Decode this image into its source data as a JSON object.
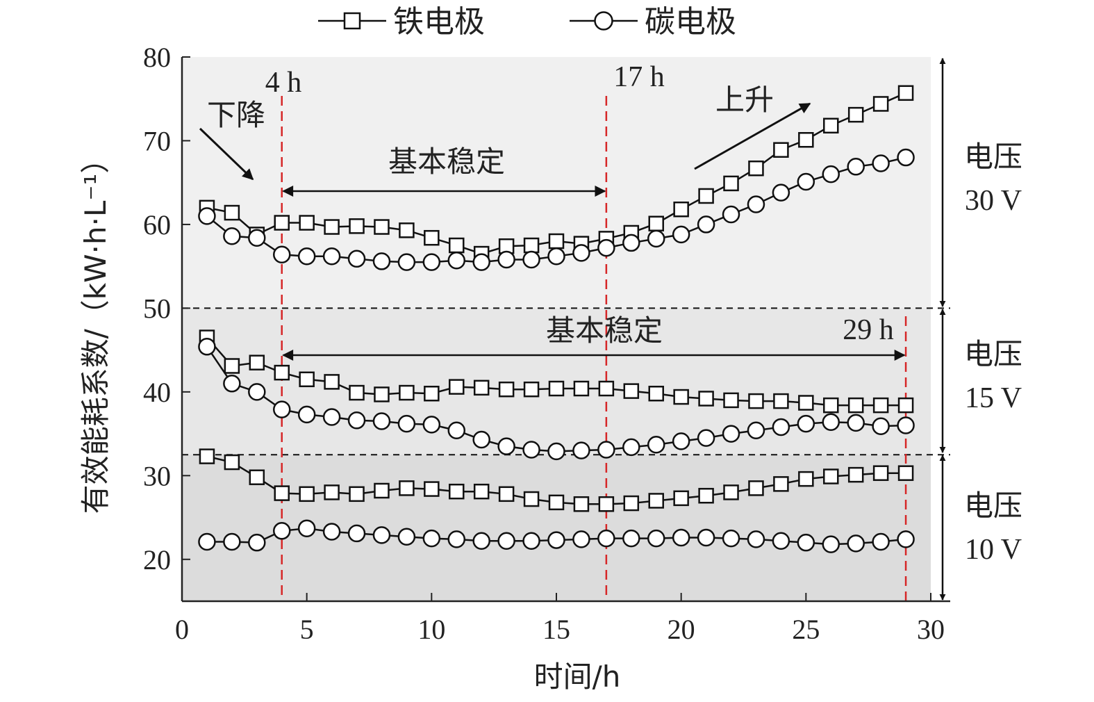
{
  "chart_data": {
    "type": "line",
    "xlabel": "时间/h",
    "ylabel": "有效能耗系数/（kW·h·L⁻¹）",
    "xlim": [
      0,
      30
    ],
    "ylim": [
      15,
      80
    ],
    "xticks": [
      0,
      5,
      10,
      15,
      20,
      25,
      30
    ],
    "yticks": [
      20,
      30,
      40,
      50,
      60,
      70,
      80
    ],
    "legend": {
      "placement": "top",
      "items": [
        {
          "name": "铁电极",
          "marker": "square"
        },
        {
          "name": "碳电极",
          "marker": "circle"
        }
      ]
    },
    "regions": [
      {
        "label_line1": "电压",
        "label_line2": "30 V",
        "y_range": [
          50,
          80
        ],
        "color": "#f0f0f0"
      },
      {
        "label_line1": "电压",
        "label_line2": "15 V",
        "y_range": [
          32.5,
          50
        ],
        "color": "#e7e7e7"
      },
      {
        "label_line1": "电压",
        "label_line2": "10 V",
        "y_range": [
          15,
          32.5
        ],
        "color": "#dcdcdc"
      }
    ],
    "vlines": [
      {
        "x": 4,
        "label": "4 h"
      },
      {
        "x": 17,
        "label": "17 h"
      },
      {
        "x": 29,
        "label": "29 h"
      }
    ],
    "annotations": {
      "decrease": "下降",
      "increase": "上升",
      "stable_1": "基本稳定",
      "stable_2": "基本稳定"
    },
    "x": [
      1,
      2,
      3,
      4,
      5,
      6,
      7,
      8,
      9,
      10,
      11,
      12,
      13,
      14,
      15,
      16,
      17,
      18,
      19,
      20,
      21,
      22,
      23,
      24,
      25,
      26,
      27,
      28,
      29
    ],
    "series": [
      {
        "group": "30 V",
        "name": "铁电极",
        "marker": "square",
        "values": [
          62.0,
          61.4,
          58.8,
          60.2,
          60.2,
          59.7,
          59.8,
          59.7,
          59.3,
          58.4,
          57.5,
          56.5,
          57.4,
          57.5,
          58.0,
          57.7,
          58.3,
          59.0,
          60.1,
          61.8,
          63.4,
          64.9,
          66.7,
          68.9,
          70.1,
          71.8,
          73.1,
          74.4,
          75.7
        ]
      },
      {
        "group": "30 V",
        "name": "碳电极",
        "marker": "circle",
        "values": [
          61.0,
          58.6,
          58.4,
          56.4,
          56.2,
          56.2,
          55.9,
          55.6,
          55.5,
          55.5,
          55.7,
          55.5,
          55.8,
          55.8,
          56.2,
          56.6,
          57.2,
          57.8,
          58.3,
          58.8,
          60.0,
          61.2,
          62.4,
          63.8,
          65.1,
          66.0,
          66.9,
          67.3,
          68.0
        ]
      },
      {
        "group": "15 V",
        "name": "铁电极",
        "marker": "square",
        "values": [
          46.5,
          43.1,
          43.5,
          42.3,
          41.5,
          41.2,
          39.9,
          39.7,
          39.9,
          39.8,
          40.6,
          40.5,
          40.3,
          40.3,
          40.4,
          40.4,
          40.4,
          40.1,
          39.8,
          39.4,
          39.2,
          39.0,
          38.9,
          38.9,
          38.7,
          38.4,
          38.4,
          38.4,
          38.4
        ]
      },
      {
        "group": "15 V",
        "name": "碳电极",
        "marker": "circle",
        "values": [
          45.4,
          41.0,
          40.0,
          37.9,
          37.3,
          37.0,
          36.6,
          36.5,
          36.2,
          36.1,
          35.4,
          34.3,
          33.5,
          33.1,
          32.9,
          33.0,
          33.1,
          33.4,
          33.7,
          34.1,
          34.5,
          35.0,
          35.4,
          35.8,
          36.2,
          36.4,
          36.3,
          35.9,
          36.0
        ]
      },
      {
        "group": "10 V",
        "name": "铁电极",
        "marker": "square",
        "values": [
          32.3,
          31.6,
          29.8,
          27.9,
          27.8,
          28.0,
          27.8,
          28.2,
          28.5,
          28.4,
          28.1,
          28.1,
          27.8,
          27.2,
          26.8,
          26.6,
          26.6,
          26.7,
          27.0,
          27.3,
          27.6,
          28.0,
          28.5,
          29.0,
          29.6,
          29.9,
          30.1,
          30.3,
          30.3
        ]
      },
      {
        "group": "10 V",
        "name": "碳电极",
        "marker": "circle",
        "values": [
          22.1,
          22.1,
          22.0,
          23.4,
          23.7,
          23.3,
          23.1,
          22.9,
          22.7,
          22.5,
          22.4,
          22.2,
          22.2,
          22.2,
          22.3,
          22.4,
          22.5,
          22.5,
          22.5,
          22.6,
          22.6,
          22.5,
          22.4,
          22.2,
          22.0,
          21.8,
          21.9,
          22.1,
          22.4
        ]
      }
    ]
  }
}
